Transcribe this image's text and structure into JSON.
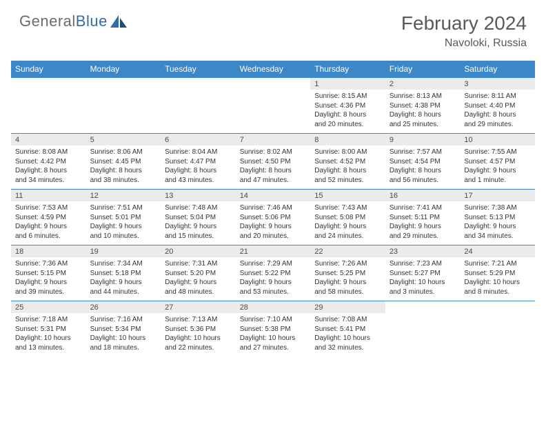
{
  "brand": {
    "text1": "General",
    "text2": "Blue"
  },
  "title": "February 2024",
  "location": "Navoloki, Russia",
  "header_bg": "#3c87c7",
  "date_bg": "#ebebeb",
  "day_names": [
    "Sunday",
    "Monday",
    "Tuesday",
    "Wednesday",
    "Thursday",
    "Friday",
    "Saturday"
  ],
  "weeks": [
    {
      "dates": [
        "",
        "",
        "",
        "",
        "1",
        "2",
        "3"
      ],
      "cells": [
        {},
        {},
        {},
        {},
        {
          "sunrise": "Sunrise: 8:15 AM",
          "sunset": "Sunset: 4:36 PM",
          "day1": "Daylight: 8 hours",
          "day2": "and 20 minutes."
        },
        {
          "sunrise": "Sunrise: 8:13 AM",
          "sunset": "Sunset: 4:38 PM",
          "day1": "Daylight: 8 hours",
          "day2": "and 25 minutes."
        },
        {
          "sunrise": "Sunrise: 8:11 AM",
          "sunset": "Sunset: 4:40 PM",
          "day1": "Daylight: 8 hours",
          "day2": "and 29 minutes."
        }
      ]
    },
    {
      "dates": [
        "4",
        "5",
        "6",
        "7",
        "8",
        "9",
        "10"
      ],
      "cells": [
        {
          "sunrise": "Sunrise: 8:08 AM",
          "sunset": "Sunset: 4:42 PM",
          "day1": "Daylight: 8 hours",
          "day2": "and 34 minutes."
        },
        {
          "sunrise": "Sunrise: 8:06 AM",
          "sunset": "Sunset: 4:45 PM",
          "day1": "Daylight: 8 hours",
          "day2": "and 38 minutes."
        },
        {
          "sunrise": "Sunrise: 8:04 AM",
          "sunset": "Sunset: 4:47 PM",
          "day1": "Daylight: 8 hours",
          "day2": "and 43 minutes."
        },
        {
          "sunrise": "Sunrise: 8:02 AM",
          "sunset": "Sunset: 4:50 PM",
          "day1": "Daylight: 8 hours",
          "day2": "and 47 minutes."
        },
        {
          "sunrise": "Sunrise: 8:00 AM",
          "sunset": "Sunset: 4:52 PM",
          "day1": "Daylight: 8 hours",
          "day2": "and 52 minutes."
        },
        {
          "sunrise": "Sunrise: 7:57 AM",
          "sunset": "Sunset: 4:54 PM",
          "day1": "Daylight: 8 hours",
          "day2": "and 56 minutes."
        },
        {
          "sunrise": "Sunrise: 7:55 AM",
          "sunset": "Sunset: 4:57 PM",
          "day1": "Daylight: 9 hours",
          "day2": "and 1 minute."
        }
      ]
    },
    {
      "dates": [
        "11",
        "12",
        "13",
        "14",
        "15",
        "16",
        "17"
      ],
      "cells": [
        {
          "sunrise": "Sunrise: 7:53 AM",
          "sunset": "Sunset: 4:59 PM",
          "day1": "Daylight: 9 hours",
          "day2": "and 6 minutes."
        },
        {
          "sunrise": "Sunrise: 7:51 AM",
          "sunset": "Sunset: 5:01 PM",
          "day1": "Daylight: 9 hours",
          "day2": "and 10 minutes."
        },
        {
          "sunrise": "Sunrise: 7:48 AM",
          "sunset": "Sunset: 5:04 PM",
          "day1": "Daylight: 9 hours",
          "day2": "and 15 minutes."
        },
        {
          "sunrise": "Sunrise: 7:46 AM",
          "sunset": "Sunset: 5:06 PM",
          "day1": "Daylight: 9 hours",
          "day2": "and 20 minutes."
        },
        {
          "sunrise": "Sunrise: 7:43 AM",
          "sunset": "Sunset: 5:08 PM",
          "day1": "Daylight: 9 hours",
          "day2": "and 24 minutes."
        },
        {
          "sunrise": "Sunrise: 7:41 AM",
          "sunset": "Sunset: 5:11 PM",
          "day1": "Daylight: 9 hours",
          "day2": "and 29 minutes."
        },
        {
          "sunrise": "Sunrise: 7:38 AM",
          "sunset": "Sunset: 5:13 PM",
          "day1": "Daylight: 9 hours",
          "day2": "and 34 minutes."
        }
      ]
    },
    {
      "dates": [
        "18",
        "19",
        "20",
        "21",
        "22",
        "23",
        "24"
      ],
      "cells": [
        {
          "sunrise": "Sunrise: 7:36 AM",
          "sunset": "Sunset: 5:15 PM",
          "day1": "Daylight: 9 hours",
          "day2": "and 39 minutes."
        },
        {
          "sunrise": "Sunrise: 7:34 AM",
          "sunset": "Sunset: 5:18 PM",
          "day1": "Daylight: 9 hours",
          "day2": "and 44 minutes."
        },
        {
          "sunrise": "Sunrise: 7:31 AM",
          "sunset": "Sunset: 5:20 PM",
          "day1": "Daylight: 9 hours",
          "day2": "and 48 minutes."
        },
        {
          "sunrise": "Sunrise: 7:29 AM",
          "sunset": "Sunset: 5:22 PM",
          "day1": "Daylight: 9 hours",
          "day2": "and 53 minutes."
        },
        {
          "sunrise": "Sunrise: 7:26 AM",
          "sunset": "Sunset: 5:25 PM",
          "day1": "Daylight: 9 hours",
          "day2": "and 58 minutes."
        },
        {
          "sunrise": "Sunrise: 7:23 AM",
          "sunset": "Sunset: 5:27 PM",
          "day1": "Daylight: 10 hours",
          "day2": "and 3 minutes."
        },
        {
          "sunrise": "Sunrise: 7:21 AM",
          "sunset": "Sunset: 5:29 PM",
          "day1": "Daylight: 10 hours",
          "day2": "and 8 minutes."
        }
      ]
    },
    {
      "dates": [
        "25",
        "26",
        "27",
        "28",
        "29",
        "",
        ""
      ],
      "cells": [
        {
          "sunrise": "Sunrise: 7:18 AM",
          "sunset": "Sunset: 5:31 PM",
          "day1": "Daylight: 10 hours",
          "day2": "and 13 minutes."
        },
        {
          "sunrise": "Sunrise: 7:16 AM",
          "sunset": "Sunset: 5:34 PM",
          "day1": "Daylight: 10 hours",
          "day2": "and 18 minutes."
        },
        {
          "sunrise": "Sunrise: 7:13 AM",
          "sunset": "Sunset: 5:36 PM",
          "day1": "Daylight: 10 hours",
          "day2": "and 22 minutes."
        },
        {
          "sunrise": "Sunrise: 7:10 AM",
          "sunset": "Sunset: 5:38 PM",
          "day1": "Daylight: 10 hours",
          "day2": "and 27 minutes."
        },
        {
          "sunrise": "Sunrise: 7:08 AM",
          "sunset": "Sunset: 5:41 PM",
          "day1": "Daylight: 10 hours",
          "day2": "and 32 minutes."
        },
        {},
        {}
      ]
    }
  ]
}
